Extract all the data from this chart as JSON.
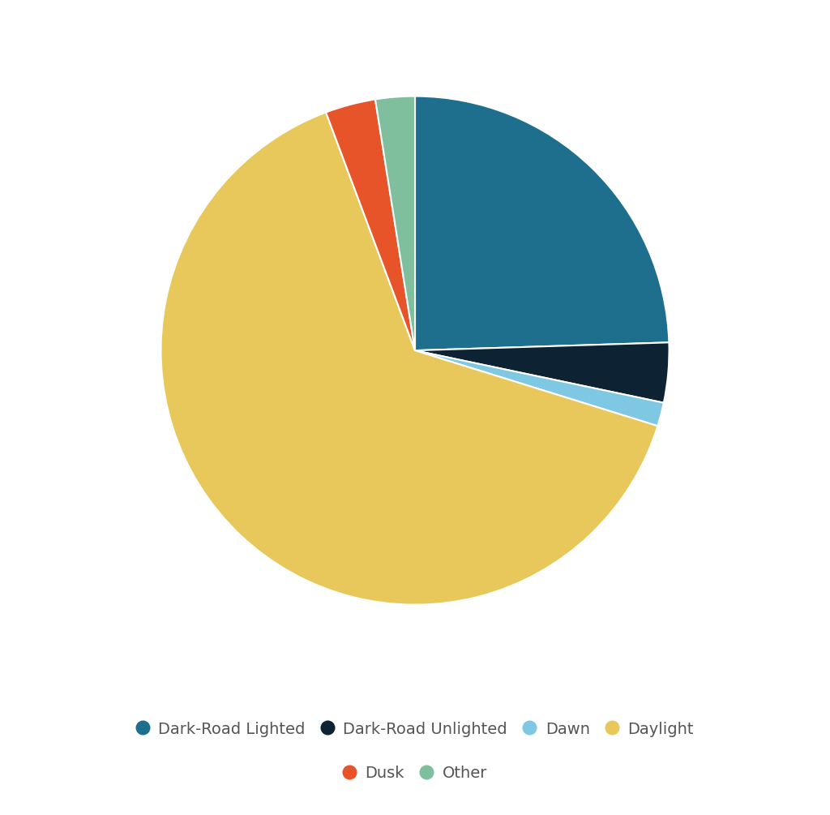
{
  "labels": [
    "Dark-Road Lighted",
    "Dark-Road Unlighted",
    "Dawn",
    "Daylight",
    "Dusk",
    "Other"
  ],
  "values": [
    24.5,
    3.8,
    1.5,
    64.5,
    3.2,
    2.5
  ],
  "colors": [
    "#1e6f8e",
    "#0d2233",
    "#7ec8e3",
    "#e8c85a",
    "#e8542a",
    "#7fbf9e"
  ],
  "startangle": 90,
  "background_color": "#ffffff",
  "legend_fontsize": 14,
  "wedge_linewidth": 1.5,
  "wedge_edgecolor": "#ffffff"
}
